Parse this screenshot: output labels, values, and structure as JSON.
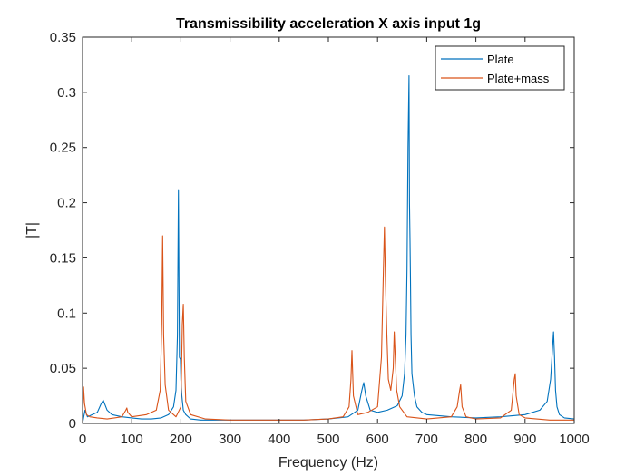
{
  "chart_data": {
    "type": "line",
    "title": "Transmissibility acceleration X axis input 1g",
    "xlabel": "Frequency (Hz)",
    "ylabel": "|T|",
    "xlim": [
      0,
      1000
    ],
    "ylim": [
      0,
      0.35
    ],
    "xticks": [
      0,
      100,
      200,
      300,
      400,
      500,
      600,
      700,
      800,
      900,
      1000
    ],
    "yticks": [
      0,
      0.05,
      0.1,
      0.15,
      0.2,
      0.25,
      0.3,
      0.35
    ],
    "xtick_labels": [
      "0",
      "100",
      "200",
      "300",
      "400",
      "500",
      "600",
      "700",
      "800",
      "900",
      "1000"
    ],
    "ytick_labels": [
      "0",
      "0.05",
      "0.1",
      "0.15",
      "0.2",
      "0.25",
      "0.3",
      "0.35"
    ],
    "grid": false,
    "legend_position": "top-right",
    "series": [
      {
        "name": "Plate",
        "color": "#0072BD",
        "x": [
          0,
          5,
          10,
          20,
          30,
          38,
          42,
          50,
          60,
          80,
          100,
          120,
          140,
          160,
          175,
          185,
          190,
          193,
          195,
          197,
          199,
          200,
          202,
          205,
          210,
          220,
          240,
          260,
          300,
          350,
          400,
          450,
          500,
          540,
          560,
          568,
          572,
          576,
          585,
          600,
          620,
          640,
          650,
          655,
          658,
          660,
          662,
          664,
          665,
          666,
          667,
          668,
          670,
          675,
          680,
          690,
          700,
          750,
          800,
          850,
          900,
          930,
          945,
          952,
          956,
          958,
          960,
          962,
          965,
          970,
          980,
          1000
        ],
        "y": [
          0.0,
          0.012,
          0.006,
          0.008,
          0.01,
          0.018,
          0.021,
          0.012,
          0.008,
          0.006,
          0.005,
          0.004,
          0.004,
          0.005,
          0.008,
          0.015,
          0.03,
          0.08,
          0.211,
          0.06,
          0.058,
          0.04,
          0.025,
          0.012,
          0.008,
          0.004,
          0.003,
          0.003,
          0.003,
          0.003,
          0.003,
          0.003,
          0.004,
          0.006,
          0.012,
          0.03,
          0.037,
          0.025,
          0.012,
          0.01,
          0.012,
          0.016,
          0.025,
          0.045,
          0.08,
          0.14,
          0.25,
          0.315,
          0.2,
          0.165,
          0.13,
          0.08,
          0.045,
          0.025,
          0.015,
          0.01,
          0.008,
          0.006,
          0.005,
          0.006,
          0.008,
          0.012,
          0.02,
          0.04,
          0.07,
          0.083,
          0.06,
          0.03,
          0.015,
          0.008,
          0.005,
          0.004
        ]
      },
      {
        "name": "Plate+mass",
        "color": "#D95319",
        "x": [
          0,
          2,
          4,
          8,
          15,
          30,
          50,
          80,
          88,
          90,
          92,
          100,
          130,
          150,
          158,
          161,
          163,
          165,
          168,
          175,
          190,
          200,
          203,
          205,
          207,
          210,
          220,
          250,
          300,
          350,
          400,
          450,
          500,
          530,
          542,
          546,
          548,
          551,
          560,
          580,
          600,
          608,
          612,
          614,
          616,
          619,
          622,
          627,
          632,
          634,
          636,
          639,
          645,
          660,
          700,
          750,
          762,
          767,
          769,
          772,
          780,
          800,
          850,
          872,
          878,
          880,
          882,
          888,
          900,
          950,
          1000
        ],
        "y": [
          0.0,
          0.033,
          0.018,
          0.008,
          0.006,
          0.005,
          0.004,
          0.006,
          0.012,
          0.014,
          0.01,
          0.006,
          0.008,
          0.012,
          0.03,
          0.09,
          0.17,
          0.08,
          0.035,
          0.012,
          0.006,
          0.015,
          0.09,
          0.108,
          0.06,
          0.02,
          0.008,
          0.004,
          0.003,
          0.003,
          0.003,
          0.003,
          0.004,
          0.006,
          0.015,
          0.04,
          0.066,
          0.025,
          0.008,
          0.01,
          0.015,
          0.06,
          0.14,
          0.178,
          0.13,
          0.08,
          0.04,
          0.03,
          0.05,
          0.083,
          0.06,
          0.03,
          0.015,
          0.006,
          0.004,
          0.006,
          0.015,
          0.03,
          0.035,
          0.015,
          0.006,
          0.004,
          0.005,
          0.012,
          0.04,
          0.045,
          0.025,
          0.008,
          0.005,
          0.003,
          0.003
        ]
      }
    ]
  }
}
